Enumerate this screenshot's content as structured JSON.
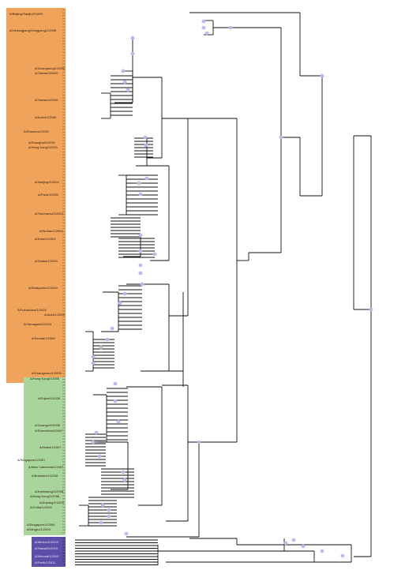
{
  "colors": {
    "orange_clade": "#f0a35a",
    "green_clade": "#a9d49b",
    "purple_clade": "#5b4fa8",
    "node_marker": "#b8bcea",
    "branch": "#111111"
  },
  "labels": {
    "orange": [
      "A/Beijing/Tianjin/2/1999",
      "A/Heilongjiang/Xiangyang/1/1999",
      "A/Guangdong/1/2000",
      "A/Taiwan/3/2000",
      "A/Taiwan/4/2000",
      "A/Anhui/1/2000",
      "A/Shantou/1/2001",
      "A/Shanghai/1/2001",
      "A/Hong Kong/1/2001",
      "A/Nanjing/1/2002",
      "A/Paris/1/2002",
      "A/Yokohama/1/2002",
      "A/Wuhan/1/2002",
      "A/Kobe/1/2003",
      "A/Osaka/1/2003",
      "A/Kitakyushu/1/2003",
      "A/Fukushima/1/2004",
      "A/Aichi/1/2004",
      "A/Yamagata/1/2004",
      "A/Sendai/1/2005",
      "A/Guangzhou/1/2005",
      "A/Hong Kong/1/2005"
    ],
    "green": [
      "A/Fujian/1/2006",
      "A/Guangxi/1/2006",
      "A/Shenzhen/1/2007",
      "A/Hubei/1/2007",
      "A/Singapore/1/2007",
      "A/New Caledonia/1/2007",
      "A/Brisbane/1/2008",
      "A/Kaohsiung/1/2008",
      "A/Hong Kong/1/2008",
      "A/Anyang/1/2009",
      "A/Chiba/1/2009",
      "A/Singapore/1/2009",
      "A/Ningbo/1/2009"
    ],
    "purple": [
      "A/Mexico/1/2010",
      "A/Hawaii/1/2010",
      "A/Victoria/1/2010",
      "A/Perth/1/2011"
    ]
  }
}
